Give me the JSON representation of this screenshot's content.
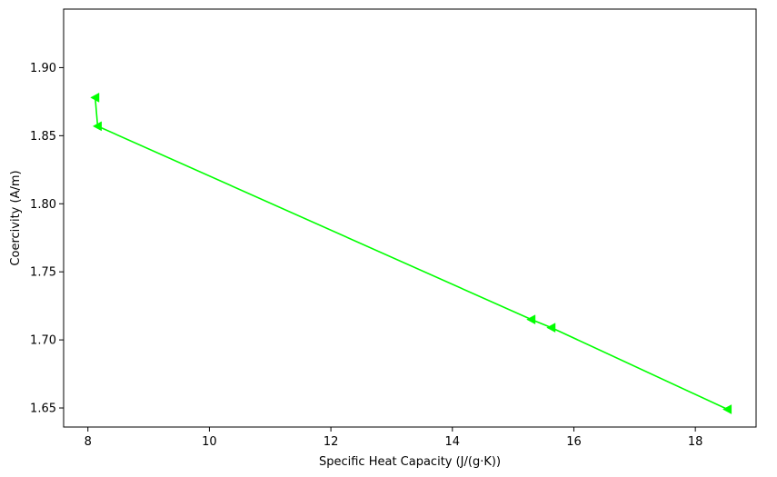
{
  "chart_data": {
    "type": "line",
    "title": "",
    "xlabel": "Specific Heat Capacity (J/(g·K))",
    "ylabel": "Coercivity (A/m)",
    "xlim": [
      7.6,
      19.0
    ],
    "ylim": [
      1.636,
      1.943
    ],
    "xticks": [
      8,
      10,
      12,
      14,
      16,
      18
    ],
    "yticks": [
      1.65,
      1.7,
      1.75,
      1.8,
      1.85,
      1.9
    ],
    "grid": false,
    "legend": "none",
    "series": [
      {
        "color": "#00ff00",
        "marker": "triangle-left",
        "x": [
          8.12,
          8.16,
          15.3,
          15.63,
          18.53
        ],
        "y": [
          1.878,
          1.857,
          1.715,
          1.709,
          1.649
        ]
      }
    ]
  }
}
